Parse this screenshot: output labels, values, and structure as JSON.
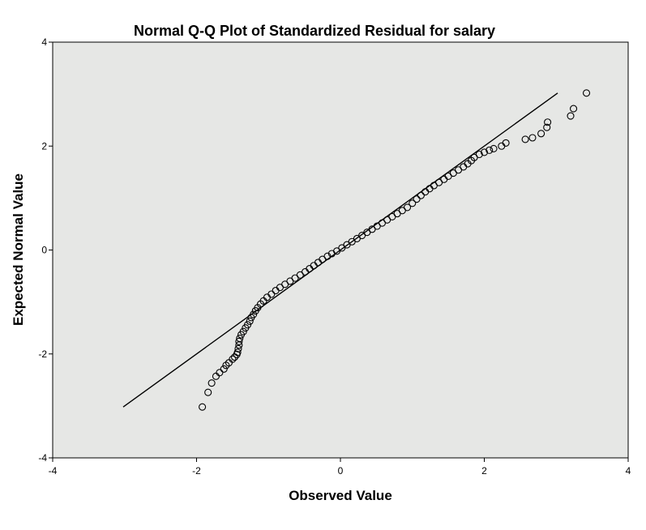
{
  "chart_data": {
    "type": "scatter",
    "title": "Normal Q-Q Plot of Standardized Residual for salary",
    "xlabel": "Observed Value",
    "ylabel": "Expected Normal Value",
    "xlim": [
      -4,
      4
    ],
    "ylim": [
      -4,
      4
    ],
    "xticks": [
      -4,
      -2,
      0,
      2,
      4
    ],
    "yticks": [
      -4,
      -2,
      0,
      2,
      4
    ],
    "xtick_labels": [
      "-4",
      "-2",
      "0",
      "2",
      "4"
    ],
    "ytick_labels": [
      "-4",
      "-2",
      "0",
      "2",
      "4"
    ],
    "grid": false,
    "reference_line": [
      [
        -3.02,
        -3.02
      ],
      [
        3.02,
        3.02
      ]
    ],
    "points": [
      [
        -1.92,
        -3.02
      ],
      [
        -1.84,
        -2.74
      ],
      [
        -1.79,
        -2.56
      ],
      [
        -1.73,
        -2.43
      ],
      [
        -1.68,
        -2.36
      ],
      [
        -1.62,
        -2.29
      ],
      [
        -1.59,
        -2.22
      ],
      [
        -1.55,
        -2.17
      ],
      [
        -1.5,
        -2.1
      ],
      [
        -1.47,
        -2.06
      ],
      [
        -1.44,
        -2.01
      ],
      [
        -1.43,
        -1.97
      ],
      [
        -1.42,
        -1.9
      ],
      [
        -1.41,
        -1.83
      ],
      [
        -1.41,
        -1.76
      ],
      [
        -1.4,
        -1.7
      ],
      [
        -1.38,
        -1.63
      ],
      [
        -1.35,
        -1.57
      ],
      [
        -1.32,
        -1.5
      ],
      [
        -1.29,
        -1.44
      ],
      [
        -1.26,
        -1.37
      ],
      [
        -1.24,
        -1.3
      ],
      [
        -1.21,
        -1.24
      ],
      [
        -1.18,
        -1.17
      ],
      [
        -1.15,
        -1.11
      ],
      [
        -1.11,
        -1.04
      ],
      [
        -1.07,
        -0.98
      ],
      [
        -1.02,
        -0.91
      ],
      [
        -0.96,
        -0.85
      ],
      [
        -0.9,
        -0.78
      ],
      [
        -0.84,
        -0.72
      ],
      [
        -0.77,
        -0.66
      ],
      [
        -0.7,
        -0.6
      ],
      [
        -0.63,
        -0.54
      ],
      [
        -0.56,
        -0.48
      ],
      [
        -0.49,
        -0.42
      ],
      [
        -0.43,
        -0.36
      ],
      [
        -0.37,
        -0.3
      ],
      [
        -0.31,
        -0.24
      ],
      [
        -0.25,
        -0.18
      ],
      [
        -0.18,
        -0.12
      ],
      [
        -0.12,
        -0.07
      ],
      [
        -0.05,
        -0.02
      ],
      [
        0.02,
        0.04
      ],
      [
        0.09,
        0.1
      ],
      [
        0.16,
        0.16
      ],
      [
        0.23,
        0.22
      ],
      [
        0.3,
        0.28
      ],
      [
        0.37,
        0.34
      ],
      [
        0.44,
        0.4
      ],
      [
        0.51,
        0.46
      ],
      [
        0.58,
        0.52
      ],
      [
        0.65,
        0.58
      ],
      [
        0.72,
        0.64
      ],
      [
        0.79,
        0.7
      ],
      [
        0.86,
        0.76
      ],
      [
        0.93,
        0.82
      ],
      [
        1.0,
        0.9
      ],
      [
        1.06,
        0.98
      ],
      [
        1.12,
        1.05
      ],
      [
        1.18,
        1.12
      ],
      [
        1.24,
        1.18
      ],
      [
        1.3,
        1.24
      ],
      [
        1.37,
        1.3
      ],
      [
        1.44,
        1.36
      ],
      [
        1.5,
        1.42
      ],
      [
        1.57,
        1.48
      ],
      [
        1.64,
        1.54
      ],
      [
        1.71,
        1.6
      ],
      [
        1.77,
        1.66
      ],
      [
        1.82,
        1.72
      ],
      [
        1.86,
        1.78
      ],
      [
        1.93,
        1.84
      ],
      [
        2.0,
        1.88
      ],
      [
        2.07,
        1.92
      ],
      [
        2.13,
        1.95
      ],
      [
        2.24,
        2.0
      ],
      [
        2.3,
        2.06
      ],
      [
        2.57,
        2.13
      ],
      [
        2.67,
        2.16
      ],
      [
        2.79,
        2.24
      ],
      [
        2.87,
        2.36
      ],
      [
        2.88,
        2.46
      ],
      [
        3.2,
        2.58
      ],
      [
        3.24,
        2.72
      ],
      [
        3.42,
        3.02
      ]
    ]
  }
}
